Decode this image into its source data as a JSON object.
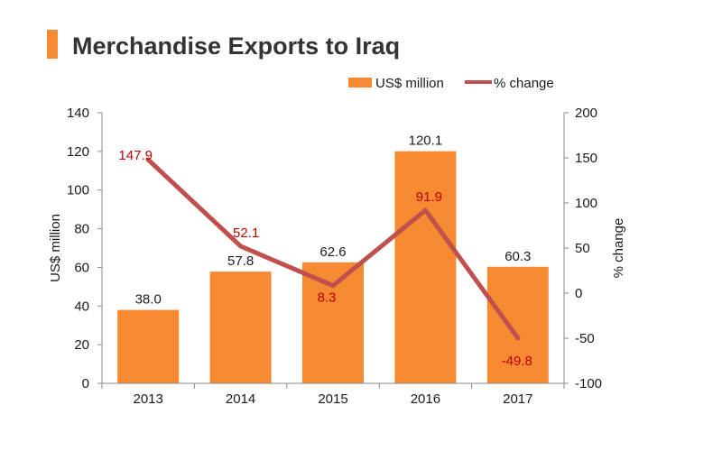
{
  "chart_data": {
    "type": "bar",
    "title": "Merchandise Exports to Iraq",
    "categories": [
      "2013",
      "2014",
      "2015",
      "2016",
      "2017"
    ],
    "series": [
      {
        "name": "US$ million",
        "type": "bar",
        "axis": "left",
        "values": [
          38.0,
          57.8,
          62.6,
          120.1,
          60.3
        ],
        "labels": [
          "38.0",
          "57.8",
          "62.6",
          "120.1",
          "60.3"
        ]
      },
      {
        "name": "% change",
        "type": "line",
        "axis": "right",
        "values": [
          147.9,
          52.1,
          8.3,
          91.9,
          -49.8
        ],
        "labels": [
          "147.9",
          "52.1",
          "8.3",
          "91.9",
          "-49.8"
        ]
      }
    ],
    "ylabel": "US$ million",
    "y2label": "% change",
    "ylim": [
      0,
      140
    ],
    "y2lim": [
      -100,
      200
    ],
    "yticks": [
      "0",
      "20",
      "40",
      "60",
      "80",
      "100",
      "120",
      "140"
    ],
    "y2ticks": [
      "-100",
      "-50",
      "0",
      "50",
      "100",
      "150",
      "200"
    ],
    "legend_position": "top-right",
    "grid": false,
    "colors": {
      "bar": "#F58A32",
      "line": "#C0504D",
      "line_label": "#C00000",
      "accent": "#F58A32",
      "title": "#333333"
    }
  }
}
